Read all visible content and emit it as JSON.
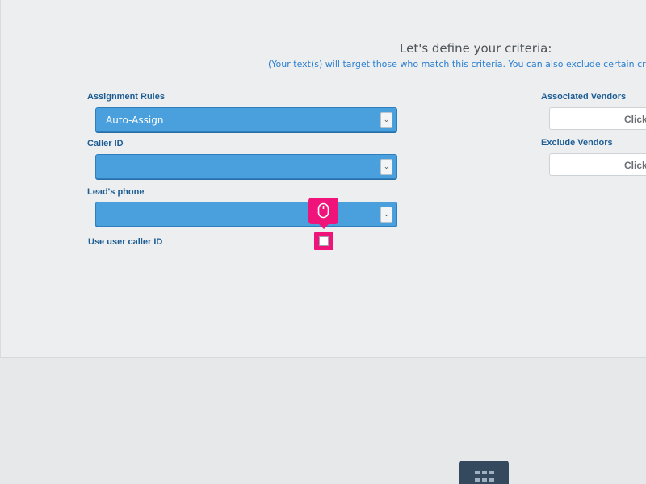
{
  "criteria": {
    "title": "Let's define your criteria:",
    "subtitle": "(Your text(s) will target those who match this criteria. You can also exclude certain cri"
  },
  "form": {
    "assignment_rules": {
      "label": "Assignment Rules",
      "value": "Auto-Assign"
    },
    "caller_id": {
      "label": "Caller ID",
      "value": ""
    },
    "leads_phone": {
      "label": "Lead's phone",
      "value": ""
    },
    "use_user_caller_id": {
      "label": "Use user caller ID",
      "checked": false
    }
  },
  "vendors": {
    "associated": {
      "label": "Associated Vendors",
      "button_text": "Click"
    },
    "exclude": {
      "label": "Exclude Vendors",
      "button_text": "Click"
    }
  },
  "tooltip": {
    "icon": "mouse-icon",
    "color": "#f0147a"
  },
  "footer": {
    "apps_icon": "grid-icon"
  },
  "colors": {
    "select_bg": "#4a9fdd",
    "label_text": "#1e5d94",
    "highlight": "#f0147a"
  }
}
